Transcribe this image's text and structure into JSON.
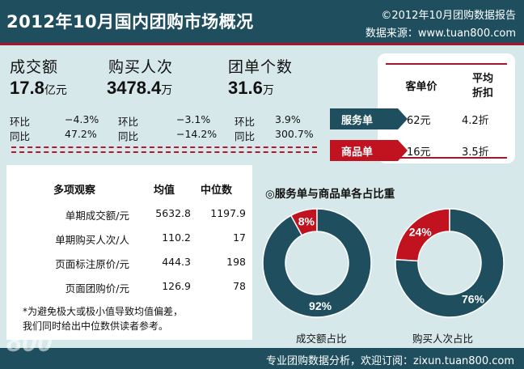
{
  "header": {
    "title": "2012年10月国内团购市场概况",
    "copyright": "©2012年10月团购数据报告",
    "source": "数据来源：www.tuan800.com"
  },
  "metrics": [
    {
      "label": "成交额",
      "value": "17.8",
      "unit": "亿元",
      "mom_label": "环比",
      "mom": "−4.3%",
      "yoy_label": "同比",
      "yoy": "47.2%"
    },
    {
      "label": "购买人次",
      "value": "3478.4",
      "unit": "万",
      "mom_label": "环比",
      "mom": "−3.1%",
      "yoy_label": "同比",
      "yoy": "−14.2%"
    },
    {
      "label": "团单个数",
      "value": "31.6",
      "unit": "万",
      "mom_label": "环比",
      "mom": "3.9%",
      "yoy_label": "同比",
      "yoy": "300.7%"
    }
  ],
  "price_box": {
    "col1": "客单价",
    "col2_line1": "平均",
    "col2_line2": "折扣",
    "rows": [
      {
        "tag": "服务单",
        "color": "#1f4f5e",
        "price": "62元",
        "discount": "4.2折"
      },
      {
        "tag": "商品单",
        "color": "#c0121f",
        "price": "16元",
        "discount": "3.5折"
      }
    ]
  },
  "table": {
    "headers": [
      "多项观察",
      "均值",
      "中位数"
    ],
    "rows": [
      {
        "label": "单期成交额/元",
        "mean": "5632.8",
        "median": "1197.9"
      },
      {
        "label": "单期购买人次/人",
        "mean": "110.2",
        "median": "17"
      },
      {
        "label": "页面标注原价/元",
        "mean": "444.3",
        "median": "198"
      },
      {
        "label": "页面团购价/元",
        "mean": "126.9",
        "median": "78"
      }
    ],
    "note_line1": "*为避免极大或极小值导致均值偏差，",
    "note_line2": "我们同时给出中位数供读者参考。"
  },
  "donuts": {
    "title": "◎服务单与商品单各占比重",
    "colors": {
      "service": "#1f4f5e",
      "goods": "#c0121f"
    },
    "charts": [
      {
        "caption": "成交额占比",
        "service_pct": 92,
        "goods_pct": 8,
        "service_label": "92%",
        "goods_label": "8%"
      },
      {
        "caption": "购买人次占比",
        "service_pct": 76,
        "goods_pct": 24,
        "service_label": "76%",
        "goods_label": "24%"
      }
    ]
  },
  "footer": {
    "text": "专业团购数据分析，欢迎订阅：zixun.tuan800.com",
    "logo": "800"
  }
}
